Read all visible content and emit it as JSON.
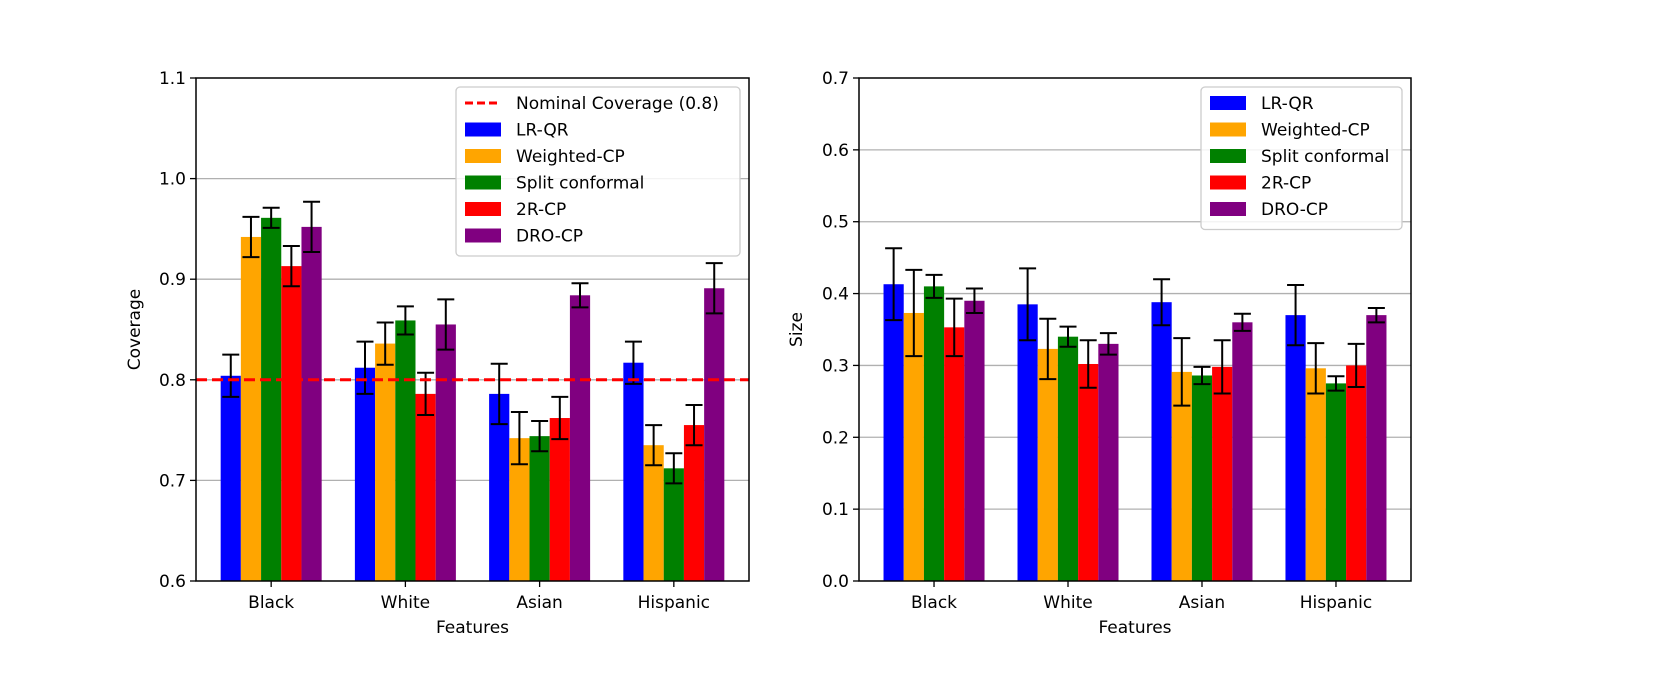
{
  "colors": {
    "LR-QR": "#0000ff",
    "Weighted-CP": "#ffa500",
    "Split conformal": "#008000",
    "2R-CP": "#ff0000",
    "DRO-CP": "#800080",
    "nominal": "#ff0000",
    "grid": "#b0b0b0"
  },
  "chart_data": [
    {
      "type": "bar",
      "xlabel": "Features",
      "ylabel": "Coverage",
      "ylim": [
        0.6,
        1.1
      ],
      "yticks": [
        0.6,
        0.7,
        0.8,
        0.9,
        1.0,
        1.1
      ],
      "ytick_labels": [
        "0.6",
        "0.7",
        "0.8",
        "0.9",
        "1.0",
        "1.1"
      ],
      "grid": "horizontal",
      "legend_position": "upper-right",
      "categories": [
        "Black",
        "White",
        "Asian",
        "Hispanic"
      ],
      "reference_line": {
        "label": "Nominal Coverage (0.8)",
        "y": 0.8,
        "style": "dashed"
      },
      "series": [
        {
          "name": "LR-QR",
          "values": [
            0.804,
            0.812,
            0.786,
            0.817
          ],
          "errors": [
            0.021,
            0.026,
            0.03,
            0.021
          ]
        },
        {
          "name": "Weighted-CP",
          "values": [
            0.942,
            0.836,
            0.742,
            0.735
          ],
          "errors": [
            0.02,
            0.021,
            0.026,
            0.02
          ]
        },
        {
          "name": "Split conformal",
          "values": [
            0.961,
            0.859,
            0.744,
            0.712
          ],
          "errors": [
            0.01,
            0.014,
            0.015,
            0.015
          ]
        },
        {
          "name": "2R-CP",
          "values": [
            0.913,
            0.786,
            0.762,
            0.755
          ],
          "errors": [
            0.02,
            0.021,
            0.021,
            0.02
          ]
        },
        {
          "name": "DRO-CP",
          "values": [
            0.952,
            0.855,
            0.884,
            0.891
          ],
          "errors": [
            0.025,
            0.025,
            0.012,
            0.025
          ]
        }
      ]
    },
    {
      "type": "bar",
      "xlabel": "Features",
      "ylabel": "Size",
      "ylim": [
        0.0,
        0.7
      ],
      "yticks": [
        0.0,
        0.1,
        0.2,
        0.3,
        0.4,
        0.5,
        0.6,
        0.7
      ],
      "ytick_labels": [
        "0.0",
        "0.1",
        "0.2",
        "0.3",
        "0.4",
        "0.5",
        "0.6",
        "0.7"
      ],
      "grid": "horizontal",
      "legend_position": "upper-right",
      "categories": [
        "Black",
        "White",
        "Asian",
        "Hispanic"
      ],
      "series": [
        {
          "name": "LR-QR",
          "values": [
            0.413,
            0.385,
            0.388,
            0.37
          ],
          "errors": [
            0.05,
            0.05,
            0.032,
            0.042
          ]
        },
        {
          "name": "Weighted-CP",
          "values": [
            0.373,
            0.323,
            0.291,
            0.296
          ],
          "errors": [
            0.06,
            0.042,
            0.047,
            0.035
          ]
        },
        {
          "name": "Split conformal",
          "values": [
            0.41,
            0.34,
            0.286,
            0.275
          ],
          "errors": [
            0.016,
            0.014,
            0.012,
            0.01
          ]
        },
        {
          "name": "2R-CP",
          "values": [
            0.353,
            0.302,
            0.298,
            0.3
          ],
          "errors": [
            0.04,
            0.033,
            0.037,
            0.03
          ]
        },
        {
          "name": "DRO-CP",
          "values": [
            0.39,
            0.33,
            0.36,
            0.37
          ],
          "errors": [
            0.017,
            0.015,
            0.012,
            0.01
          ]
        }
      ]
    }
  ]
}
